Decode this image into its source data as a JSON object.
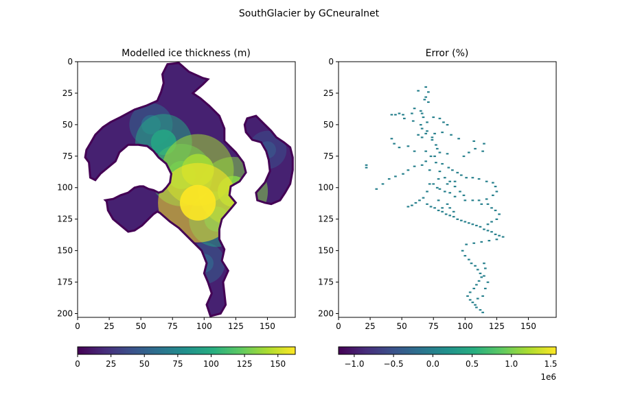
{
  "figure": {
    "suptitle": "SouthGlacier by GCneuralnet"
  },
  "chart_data": [
    {
      "type": "heatmap",
      "title": "Modelled ice thickness (m)",
      "colormap": "viridis",
      "xlim": [
        0,
        172
      ],
      "ylim": [
        203,
        0
      ],
      "xticks": [
        "0",
        "25",
        "50",
        "75",
        "100",
        "125",
        "150"
      ],
      "yticks": [
        "0",
        "25",
        "50",
        "75",
        "100",
        "125",
        "150",
        "175",
        "200"
      ],
      "colorbar": {
        "range": [
          0,
          163
        ],
        "ticks": [
          "0",
          "25",
          "50",
          "75",
          "100",
          "125",
          "150"
        ],
        "tick_values": [
          0,
          25,
          50,
          75,
          100,
          125,
          150
        ],
        "offset": ""
      },
      "mask_outline": [
        [
          71,
          2
        ],
        [
          80,
          1
        ],
        [
          88,
          8
        ],
        [
          99,
          13
        ],
        [
          103,
          14
        ],
        [
          99,
          18
        ],
        [
          91,
          25
        ],
        [
          97,
          29
        ],
        [
          104,
          35
        ],
        [
          112,
          43
        ],
        [
          116,
          53
        ],
        [
          116,
          63
        ],
        [
          125,
          72
        ],
        [
          131,
          80
        ],
        [
          133,
          88
        ],
        [
          128,
          95
        ],
        [
          121,
          99
        ],
        [
          120,
          106
        ],
        [
          125,
          112
        ],
        [
          120,
          118
        ],
        [
          114,
          125
        ],
        [
          112,
          133
        ],
        [
          112,
          141
        ],
        [
          116,
          149
        ],
        [
          114,
          158
        ],
        [
          119,
          166
        ],
        [
          115,
          175
        ],
        [
          116,
          184
        ],
        [
          117,
          193
        ],
        [
          113,
          200
        ],
        [
          105,
          202
        ],
        [
          102,
          193
        ],
        [
          106,
          184
        ],
        [
          103,
          175
        ],
        [
          100,
          168
        ],
        [
          102,
          160
        ],
        [
          98,
          150
        ],
        [
          90,
          142
        ],
        [
          80,
          132
        ],
        [
          73,
          127
        ],
        [
          65,
          120
        ],
        [
          63,
          119
        ],
        [
          60,
          121
        ],
        [
          51,
          130
        ],
        [
          45,
          134
        ],
        [
          40,
          135
        ],
        [
          34,
          130
        ],
        [
          28,
          125
        ],
        [
          24,
          118
        ],
        [
          23,
          111
        ],
        [
          22,
          110
        ],
        [
          28,
          109
        ],
        [
          34,
          106
        ],
        [
          40,
          104
        ],
        [
          45,
          100
        ],
        [
          49,
          99
        ],
        [
          52,
          99
        ],
        [
          56,
          101
        ],
        [
          60,
          102
        ],
        [
          64,
          104
        ],
        [
          67,
          103
        ],
        [
          70,
          100
        ],
        [
          73,
          96
        ],
        [
          74,
          89
        ],
        [
          70,
          81
        ],
        [
          64,
          76
        ],
        [
          60,
          71
        ],
        [
          55,
          67
        ],
        [
          48,
          66
        ],
        [
          40,
          66
        ],
        [
          33,
          72
        ],
        [
          30,
          79
        ],
        [
          24,
          84
        ],
        [
          18,
          89
        ],
        [
          14,
          94
        ],
        [
          10,
          92
        ],
        [
          9,
          80
        ],
        [
          6,
          76
        ],
        [
          7,
          70
        ],
        [
          10,
          65
        ],
        [
          14,
          58
        ],
        [
          20,
          52
        ],
        [
          26,
          48
        ],
        [
          34,
          44
        ],
        [
          45,
          38
        ],
        [
          54,
          35
        ],
        [
          63,
          31
        ],
        [
          66,
          24
        ],
        [
          68,
          17
        ],
        [
          67,
          10
        ]
      ],
      "mask_outline_right": [
        [
          134,
          45
        ],
        [
          141,
          43
        ],
        [
          147,
          49
        ],
        [
          153,
          55
        ],
        [
          157,
          60
        ],
        [
          163,
          64
        ],
        [
          168,
          68
        ],
        [
          170,
          76
        ],
        [
          170,
          86
        ],
        [
          168,
          97
        ],
        [
          164,
          104
        ],
        [
          160,
          110
        ],
        [
          153,
          113
        ],
        [
          148,
          112
        ],
        [
          142,
          110
        ],
        [
          141,
          104
        ],
        [
          148,
          96
        ],
        [
          152,
          87
        ],
        [
          151,
          78
        ],
        [
          149,
          71
        ],
        [
          145,
          64
        ],
        [
          138,
          62
        ],
        [
          133,
          56
        ],
        [
          132,
          50
        ]
      ],
      "hotspots": [
        {
          "x": 95,
          "y": 112,
          "value": 163
        },
        {
          "x": 95,
          "y": 86,
          "value": 140
        },
        {
          "x": 123,
          "y": 103,
          "value": 132
        },
        {
          "x": 82,
          "y": 90,
          "value": 112
        },
        {
          "x": 68,
          "y": 64,
          "value": 95
        },
        {
          "x": 110,
          "y": 125,
          "value": 92
        },
        {
          "x": 58,
          "y": 50,
          "value": 55
        },
        {
          "x": 100,
          "y": 160,
          "value": 50
        },
        {
          "x": 150,
          "y": 70,
          "value": 40
        }
      ]
    },
    {
      "type": "heatmap",
      "title": "Error (%)",
      "colormap": "viridis",
      "xlim": [
        0,
        172
      ],
      "ylim": [
        203,
        0
      ],
      "xticks": [
        "0",
        "25",
        "50",
        "75",
        "100",
        "125",
        "150"
      ],
      "yticks": [
        "0",
        "25",
        "50",
        "75",
        "100",
        "125",
        "150",
        "175",
        "200"
      ],
      "colorbar": {
        "range": [
          -1.2,
          1.57
        ],
        "ticks": [
          "−1.0",
          "−0.5",
          "0.0",
          "0.5",
          "1.0",
          "1.5"
        ],
        "tick_values": [
          -1.0,
          -0.5,
          0.0,
          0.5,
          1.0,
          1.5
        ],
        "offset": "1e6"
      },
      "points_value": 0.0,
      "points": [
        [
          69,
          20
        ],
        [
          63,
          23
        ],
        [
          71,
          24
        ],
        [
          69,
          28
        ],
        [
          68,
          30
        ],
        [
          71,
          32
        ],
        [
          60,
          37
        ],
        [
          65,
          39
        ],
        [
          48,
          41
        ],
        [
          42,
          42
        ],
        [
          45,
          42
        ],
        [
          51,
          42
        ],
        [
          58,
          41
        ],
        [
          52,
          45
        ],
        [
          59,
          47
        ],
        [
          66,
          41
        ],
        [
          67,
          44
        ],
        [
          70,
          48
        ],
        [
          75,
          44
        ],
        [
          80,
          45
        ],
        [
          83,
          48
        ],
        [
          86,
          50
        ],
        [
          65,
          50
        ],
        [
          66,
          53
        ],
        [
          70,
          55
        ],
        [
          69,
          57
        ],
        [
          63,
          58
        ],
        [
          66,
          60
        ],
        [
          74,
          60
        ],
        [
          82,
          56
        ],
        [
          89,
          58
        ],
        [
          95,
          61
        ],
        [
          107,
          63
        ],
        [
          115,
          65
        ],
        [
          114,
          71
        ],
        [
          108,
          69
        ],
        [
          103,
          72
        ],
        [
          99,
          75
        ],
        [
          86,
          73
        ],
        [
          80,
          72
        ],
        [
          76,
          75
        ],
        [
          73,
          75
        ],
        [
          69,
          79
        ],
        [
          66,
          82
        ],
        [
          60,
          83
        ],
        [
          55,
          86
        ],
        [
          51,
          89
        ],
        [
          45,
          91
        ],
        [
          40,
          93
        ],
        [
          35,
          97
        ],
        [
          30,
          101
        ],
        [
          22,
          82
        ],
        [
          22,
          84
        ],
        [
          42,
          61
        ],
        [
          44,
          65
        ],
        [
          48,
          68
        ],
        [
          55,
          67
        ],
        [
          60,
          71
        ],
        [
          77,
          80
        ],
        [
          82,
          81
        ],
        [
          87,
          84
        ],
        [
          90,
          86
        ],
        [
          94,
          88
        ],
        [
          97,
          90
        ],
        [
          101,
          92
        ],
        [
          106,
          92
        ],
        [
          111,
          93
        ],
        [
          117,
          95
        ],
        [
          122,
          96
        ],
        [
          124,
          99
        ],
        [
          125,
          103
        ],
        [
          122,
          106
        ],
        [
          117,
          109
        ],
        [
          111,
          110
        ],
        [
          106,
          110
        ],
        [
          100,
          110
        ],
        [
          92,
          107
        ],
        [
          88,
          104
        ],
        [
          84,
          103
        ],
        [
          80,
          101
        ],
        [
          78,
          100
        ],
        [
          75,
          97
        ],
        [
          72,
          97
        ],
        [
          70,
          103
        ],
        [
          67,
          108
        ],
        [
          64,
          110
        ],
        [
          61,
          112
        ],
        [
          58,
          114
        ],
        [
          55,
          115
        ],
        [
          70,
          113
        ],
        [
          73,
          115
        ],
        [
          76,
          116
        ],
        [
          79,
          118
        ],
        [
          82,
          119
        ],
        [
          85,
          121
        ],
        [
          88,
          122
        ],
        [
          91,
          123
        ],
        [
          94,
          125
        ],
        [
          97,
          126
        ],
        [
          100,
          127
        ],
        [
          103,
          128
        ],
        [
          106,
          129
        ],
        [
          109,
          130
        ],
        [
          112,
          131
        ],
        [
          115,
          133
        ],
        [
          118,
          134
        ],
        [
          121,
          135
        ],
        [
          124,
          137
        ],
        [
          127,
          138
        ],
        [
          130,
          139
        ],
        [
          125,
          141
        ],
        [
          119,
          142
        ],
        [
          113,
          143
        ],
        [
          107,
          144
        ],
        [
          101,
          145
        ],
        [
          98,
          150
        ],
        [
          100,
          154
        ],
        [
          103,
          157
        ],
        [
          105,
          160
        ],
        [
          108,
          162
        ],
        [
          110,
          165
        ],
        [
          112,
          168
        ],
        [
          113,
          171
        ],
        [
          111,
          174
        ],
        [
          109,
          177
        ],
        [
          107,
          180
        ],
        [
          104,
          183
        ],
        [
          102,
          186
        ],
        [
          104,
          189
        ],
        [
          106,
          191
        ],
        [
          108,
          193
        ],
        [
          109,
          195
        ],
        [
          112,
          197
        ],
        [
          114,
          199
        ],
        [
          115,
          160
        ],
        [
          116,
          164
        ],
        [
          115,
          170
        ],
        [
          118,
          175
        ],
        [
          116,
          180
        ],
        [
          114,
          186
        ],
        [
          110,
          188
        ],
        [
          74,
          62
        ],
        [
          76,
          57
        ],
        [
          69,
          71
        ],
        [
          72,
          86
        ],
        [
          79,
          93
        ],
        [
          86,
          97
        ],
        [
          92,
          99
        ],
        [
          96,
          103
        ],
        [
          99,
          106
        ],
        [
          86,
          113
        ],
        [
          82,
          116
        ],
        [
          79,
          110
        ],
        [
          88,
          116
        ],
        [
          91,
          119
        ],
        [
          113,
          113
        ],
        [
          118,
          113
        ],
        [
          121,
          116
        ],
        [
          124,
          118
        ],
        [
          127,
          121
        ],
        [
          125,
          125
        ],
        [
          121,
          127
        ],
        [
          118,
          129
        ],
        [
          77,
          66
        ],
        [
          78,
          69
        ],
        [
          80,
          87
        ],
        [
          84,
          92
        ],
        [
          88,
          95
        ],
        [
          92,
          95
        ]
      ]
    }
  ]
}
